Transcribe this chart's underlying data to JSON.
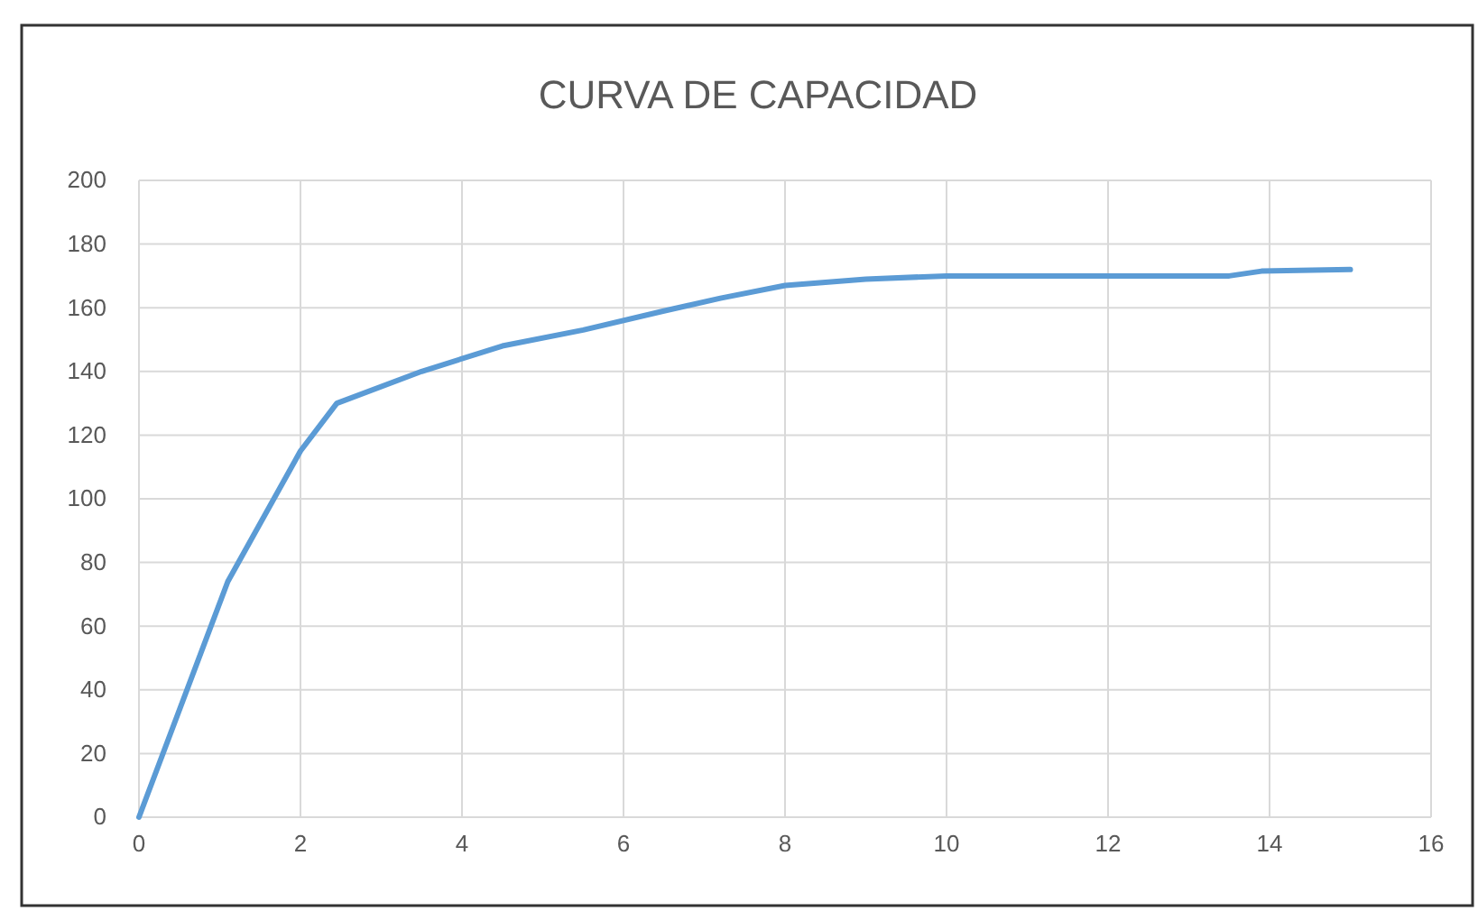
{
  "chart_data": {
    "type": "line",
    "title": "CURVA DE CAPACIDAD",
    "x": [
      0,
      1.1,
      2,
      2.45,
      3.5,
      4.5,
      5.5,
      6.5,
      7.2,
      8,
      9,
      10,
      12,
      13.5,
      13.9,
      15
    ],
    "values": [
      0,
      74,
      115,
      130,
      140,
      148,
      153,
      159,
      163,
      167,
      169,
      170,
      170,
      170,
      171.5,
      172
    ],
    "color": "#5b9bd5",
    "xlim": [
      0,
      16
    ],
    "xticks": [
      0,
      2,
      4,
      6,
      8,
      10,
      12,
      14,
      16
    ],
    "ylim": [
      0,
      200
    ],
    "yticks": [
      0,
      20,
      40,
      60,
      80,
      100,
      120,
      140,
      160,
      180,
      200
    ],
    "grid": true,
    "marker": "none"
  }
}
